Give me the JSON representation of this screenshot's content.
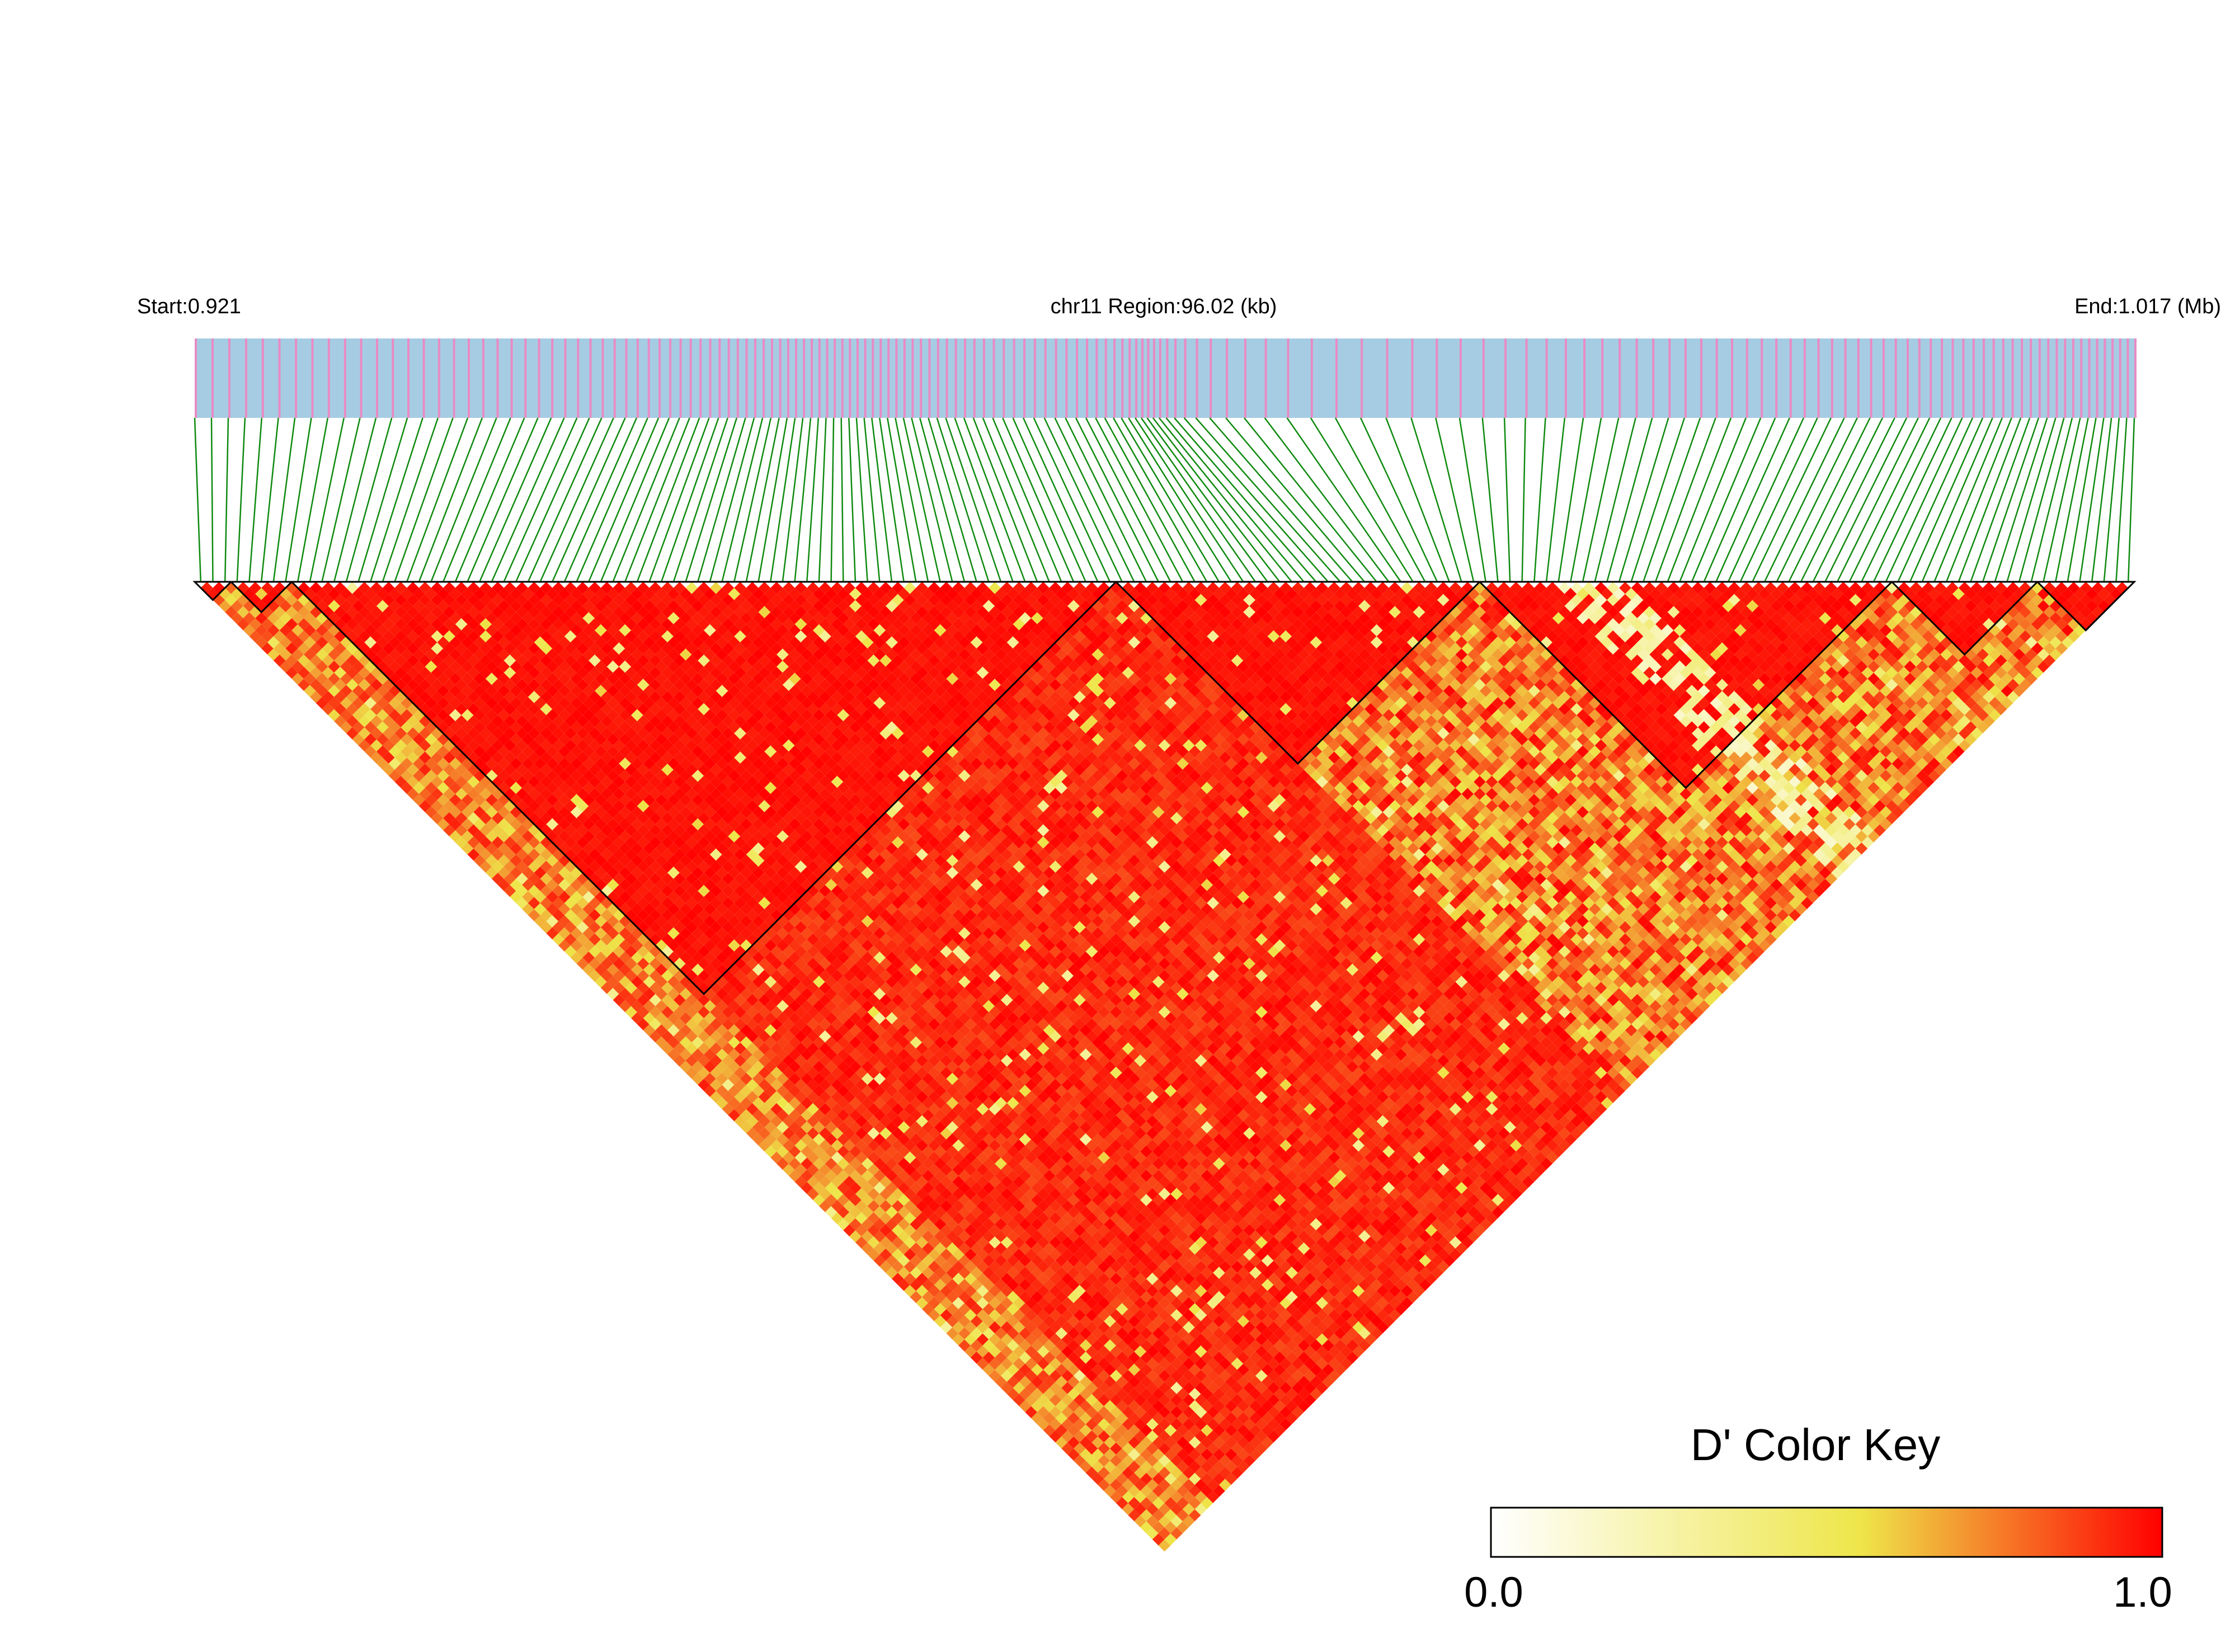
{
  "chart_data": {
    "type": "heatmap",
    "title": "",
    "chromosome_label": "chr11 Region:96.02 (kb)",
    "start_label": "Start:0.921",
    "end_label": "End:1.017 (Mb)",
    "region": {
      "start_mb": 0.921,
      "end_mb": 1.017,
      "length_kb": 96.02
    },
    "marker_count": 160,
    "value_range": [
      0.0,
      1.0
    ],
    "palette": {
      "low": "#ffffff",
      "mid": "#eee64a",
      "high": "#ff0000"
    },
    "track_colors": {
      "background": "#a6cce3",
      "marker": "#e88bc4",
      "connector": "#0f8a0f"
    },
    "block_boundaries": [
      [
        0,
        3
      ],
      [
        3,
        8
      ],
      [
        8,
        76
      ],
      [
        76,
        106
      ],
      [
        106,
        140
      ],
      [
        140,
        152
      ],
      [
        152,
        160
      ]
    ],
    "legend": {
      "title": "D' Color Key",
      "min_label": "0.0",
      "max_label": "1.0",
      "position": "bottom-right"
    }
  }
}
